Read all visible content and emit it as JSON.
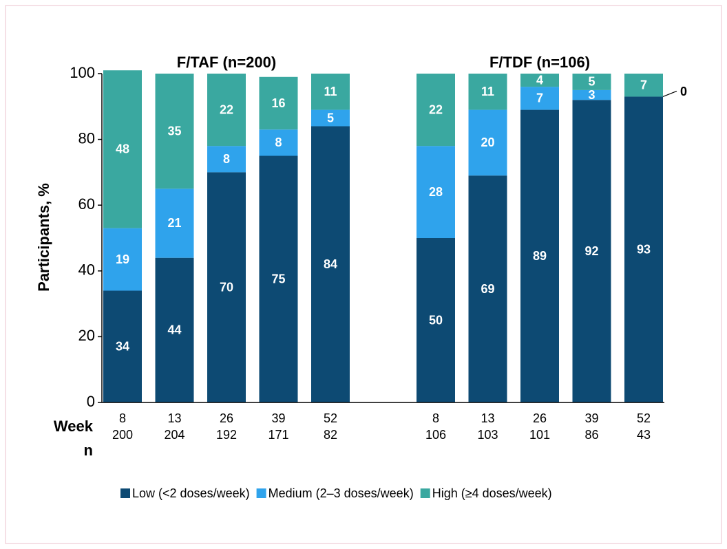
{
  "chart_data": {
    "type": "bar",
    "stacked": true,
    "ylabel": "Participants, %",
    "ylim": [
      0,
      100
    ],
    "yticks": [
      0,
      20,
      40,
      60,
      80,
      100
    ],
    "row_labels": [
      "Week",
      "n"
    ],
    "series": [
      {
        "name": "Low (<2 doses/week)",
        "color": "#0d4a73"
      },
      {
        "name": "Medium (2–3 doses/week)",
        "color": "#2fa3ec"
      },
      {
        "name": "High (≥4 doses/week)",
        "color": "#3aa8a0"
      }
    ],
    "legend": "bottom",
    "groups": [
      {
        "title": "F/TAF (n=200)",
        "categories": [
          "8",
          "13",
          "26",
          "39",
          "52"
        ],
        "n": [
          200,
          204,
          192,
          171,
          82
        ],
        "series": [
          {
            "values": [
              34,
              44,
              70,
              75,
              84
            ]
          },
          {
            "values": [
              19,
              21,
              8,
              8,
              5
            ]
          },
          {
            "values": [
              48,
              35,
              22,
              16,
              11
            ]
          }
        ]
      },
      {
        "title": "F/TDF (n=106)",
        "categories": [
          "8",
          "13",
          "26",
          "39",
          "52"
        ],
        "n": [
          106,
          103,
          101,
          86,
          43
        ],
        "series": [
          {
            "values": [
              50,
              69,
              89,
              92,
              93
            ]
          },
          {
            "values": [
              28,
              20,
              7,
              3,
              0
            ]
          },
          {
            "values": [
              22,
              11,
              4,
              5,
              7
            ]
          }
        ]
      }
    ]
  }
}
